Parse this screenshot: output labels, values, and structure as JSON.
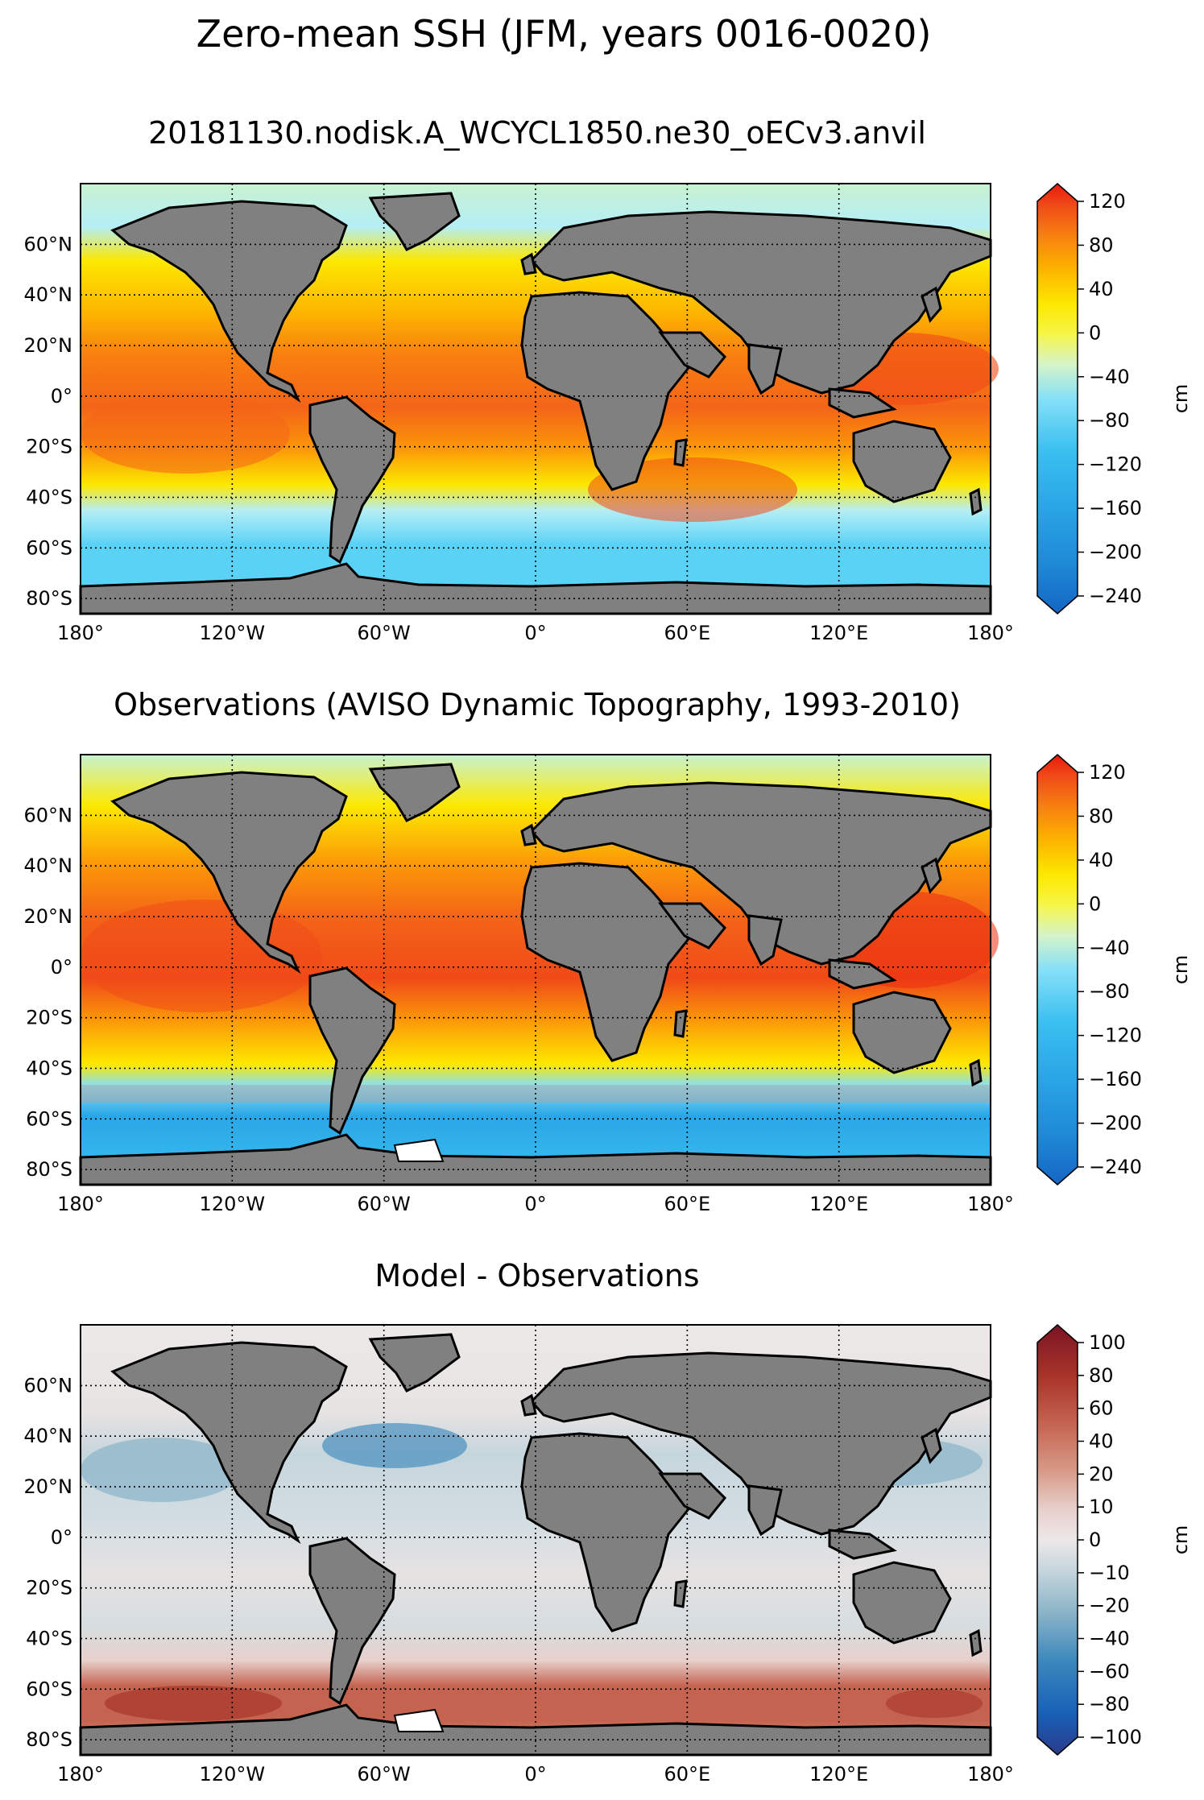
{
  "figure": {
    "title": "Zero-mean SSH (JFM, years 0016-0020)"
  },
  "lat_labels": [
    "60°N",
    "40°N",
    "20°N",
    "0°",
    "20°S",
    "40°S",
    "60°S",
    "80°S"
  ],
  "lon_labels": [
    "180°",
    "120°W",
    "60°W",
    "0°",
    "60°E",
    "120°E",
    "180°"
  ],
  "panels": [
    {
      "title": "20181130.nodisk.A_WCYCL1850.ne30_oECv3.anvil",
      "colorbar_label": "cm",
      "colorbar_ticks": [
        "120",
        "80",
        "40",
        "0",
        "−40",
        "−80",
        "−120",
        "−160",
        "−200",
        "−240"
      ],
      "palette": [
        "#1566c4",
        "#1f8ad6",
        "#2aa6e6",
        "#3ac0f0",
        "#5ad2f6",
        "#86e0f8",
        "#b5eef6",
        "#d6f4c8",
        "#eaf78a",
        "#f6f64a",
        "#fde800",
        "#fdd000",
        "#fdb400",
        "#fb9a08",
        "#f87f10",
        "#f46418",
        "#f04a18",
        "#eb2e12",
        "#e81a0c"
      ]
    },
    {
      "title": "Observations (AVISO Dynamic Topography, 1993-2010)",
      "colorbar_label": "cm",
      "colorbar_ticks": [
        "120",
        "80",
        "40",
        "0",
        "−40",
        "−80",
        "−120",
        "−160",
        "−200",
        "−240"
      ],
      "palette": [
        "#1566c4",
        "#1f8ad6",
        "#2aa6e6",
        "#3ac0f0",
        "#5ad2f6",
        "#86e0f8",
        "#b5eef6",
        "#d6f4c8",
        "#eaf78a",
        "#f6f64a",
        "#fde800",
        "#fdd000",
        "#fdb400",
        "#fb9a08",
        "#f87f10",
        "#f46418",
        "#f04a18",
        "#eb2e12",
        "#e81a0c"
      ]
    },
    {
      "title": "Model - Observations",
      "colorbar_label": "cm",
      "colorbar_ticks": [
        "100",
        "80",
        "60",
        "40",
        "20",
        "10",
        "0",
        "−10",
        "−20",
        "−40",
        "−60",
        "−80",
        "−100"
      ],
      "palette": [
        "#2b3a8a",
        "#1862b8",
        "#3d88bc",
        "#8ab4c8",
        "#c6d6dd",
        "#ede8e8",
        "#e8d0cc",
        "#d89a88",
        "#c46450",
        "#a83428",
        "#7a1424"
      ]
    }
  ],
  "colors": {
    "land": "#808080",
    "frame": "#000000",
    "grid": "#000000"
  }
}
